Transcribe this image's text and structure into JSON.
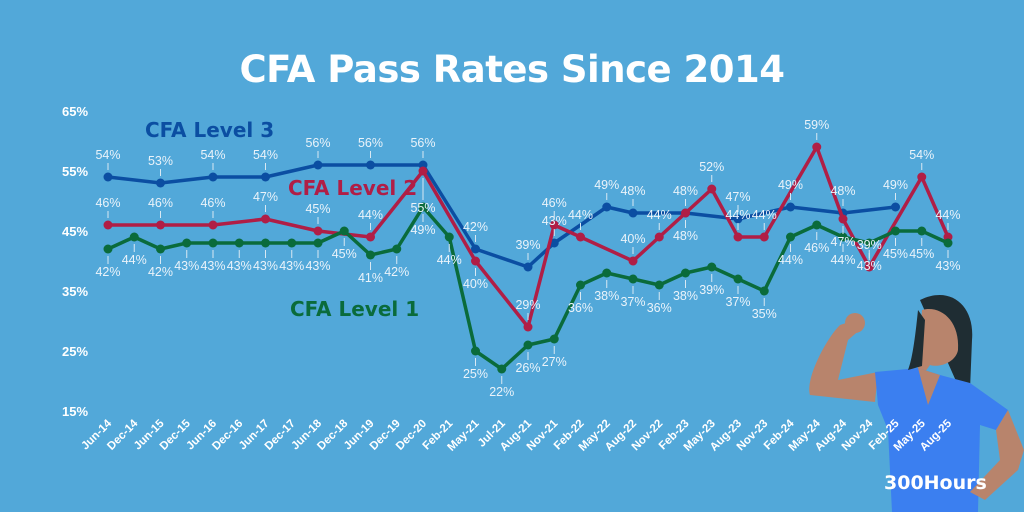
{
  "chart_data": {
    "type": "line",
    "title": "CFA Pass Rates Since 2014",
    "xlabel": "",
    "ylabel": "",
    "ylim": [
      15,
      65
    ],
    "yticks": [
      "15%",
      "25%",
      "35%",
      "45%",
      "55%",
      "65%"
    ],
    "ytick_values": [
      15,
      25,
      35,
      45,
      55,
      65
    ],
    "categories": [
      "Jun-14",
      "Dec-14",
      "Jun-15",
      "Dec-15",
      "Jun-16",
      "Dec-16",
      "Jun-17",
      "Dec-17",
      "Jun-18",
      "Dec-18",
      "Jun-19",
      "Dec-19",
      "Dec-20",
      "Feb-21",
      "May-21",
      "Jul-21",
      "Aug-21",
      "Nov-21",
      "Feb-22",
      "May-22",
      "Aug-22",
      "Nov-22",
      "Feb-23",
      "May-23",
      "Aug-23",
      "Nov-23",
      "Feb-24",
      "May-24",
      "Aug-24",
      "Nov-24",
      "Feb-25",
      "May-25",
      "Aug-25"
    ],
    "grid": false,
    "legend": "inline labels",
    "series": [
      {
        "name": "CFA Level 3",
        "color": "#0b4ea2",
        "values": [
          54,
          null,
          53,
          null,
          54,
          null,
          54,
          null,
          56,
          null,
          56,
          null,
          56,
          null,
          42,
          null,
          39,
          43,
          null,
          49,
          48,
          null,
          48,
          null,
          47,
          null,
          49,
          null,
          48,
          null,
          49,
          null,
          null
        ]
      },
      {
        "name": "CFA Level 2",
        "color": "#b01e46",
        "values": [
          46,
          null,
          46,
          null,
          46,
          null,
          47,
          null,
          45,
          null,
          44,
          null,
          55,
          null,
          40,
          null,
          29,
          46,
          44,
          null,
          40,
          44,
          48,
          52,
          44,
          44,
          null,
          59,
          47,
          39,
          null,
          54,
          44
        ]
      },
      {
        "name": "CFA Level 1",
        "color": "#0a6b3b",
        "values": [
          42,
          44,
          42,
          43,
          43,
          43,
          43,
          43,
          43,
          45,
          41,
          42,
          49,
          44,
          25,
          22,
          26,
          27,
          36,
          38,
          37,
          36,
          38,
          39,
          37,
          35,
          44,
          46,
          44,
          43,
          45,
          45,
          43
        ]
      }
    ]
  },
  "brand": "300Hours"
}
